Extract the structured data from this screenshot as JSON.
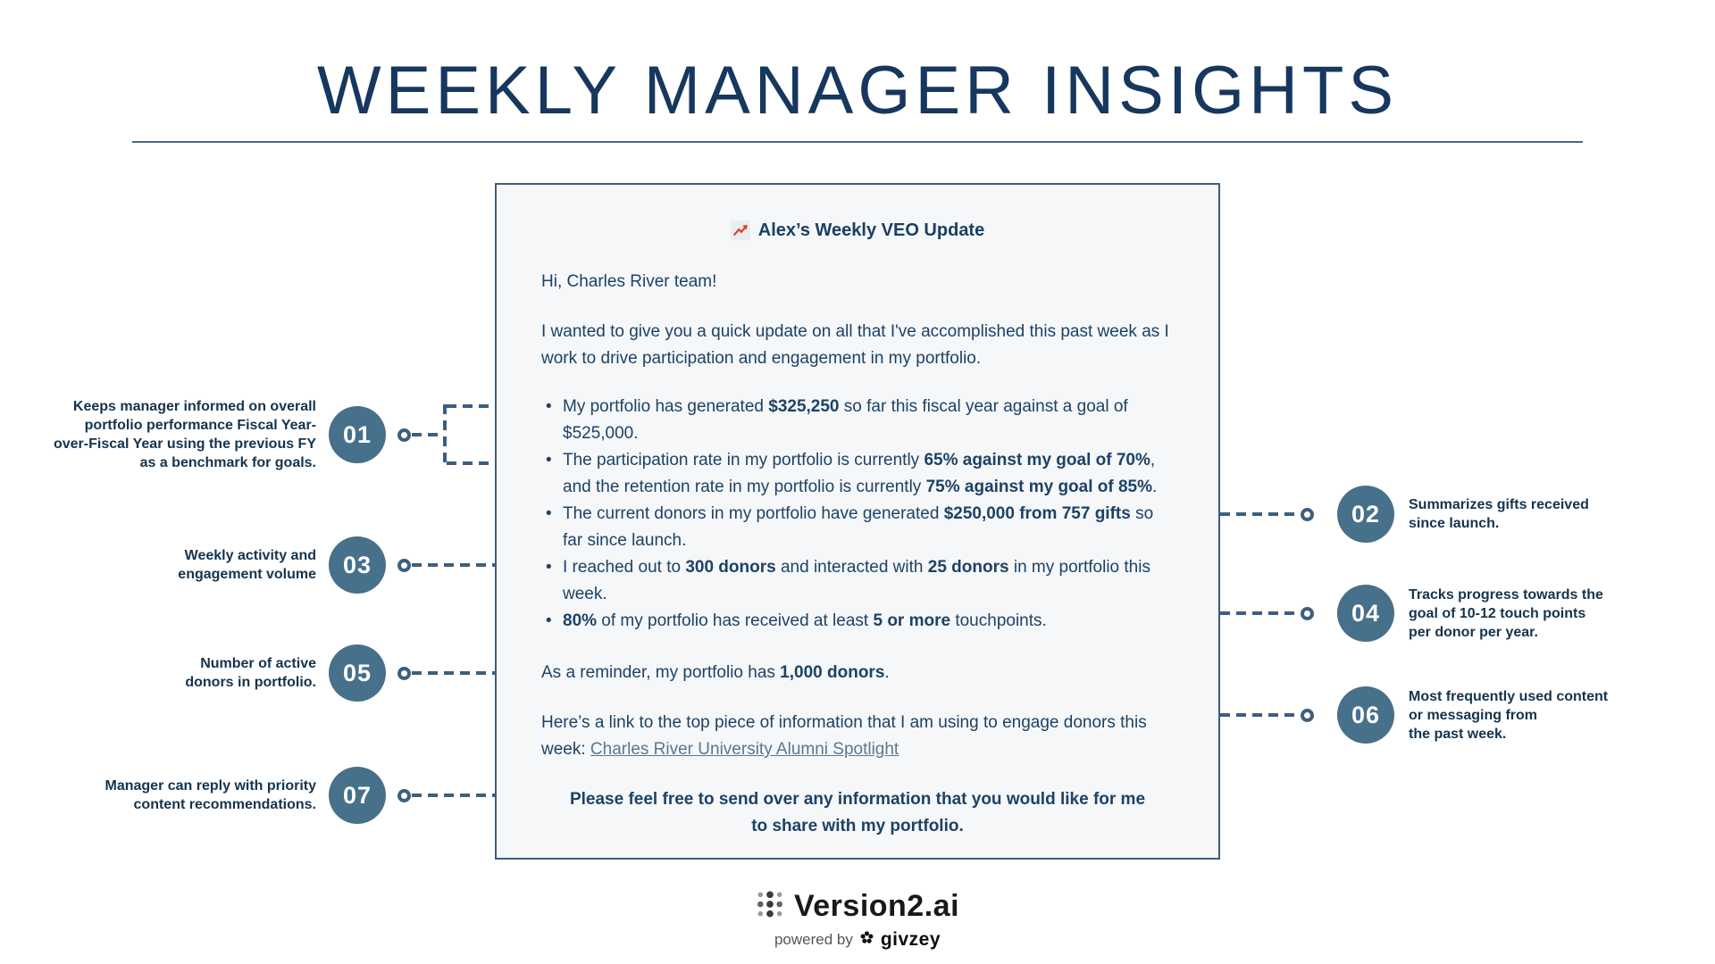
{
  "page": {
    "title": "WEEKLY MANAGER INSIGHTS"
  },
  "colors": {
    "title_navy": "#16375e",
    "body_navy": "#1d4266",
    "callout_circle_fill": "#47708a",
    "connector": "#3d5f7d",
    "card_bg": "#f5f7f8",
    "card_border": "#3c5d7c",
    "link": "#5a7890",
    "emoji_arrow_red": "#e0392b"
  },
  "card": {
    "title_icon": "chart-increasing-emoji",
    "title": "Alex’s Weekly VEO Update",
    "greeting": "Hi, Charles River team!",
    "intro": [
      {
        "t": "I wanted to give you a quick update on all that I've accomplished this past week as I work to drive participation and engagement in my portfolio."
      }
    ],
    "bullets": [
      [
        {
          "t": "My portfolio has generated "
        },
        {
          "t": "$325,250",
          "b": true
        },
        {
          "t": " so far this fiscal year against a goal of $525,000."
        }
      ],
      [
        {
          "t": "The participation rate in my portfolio is currently "
        },
        {
          "t": "65% against my goal of 70%",
          "b": true
        },
        {
          "t": ", and the retention rate in my portfolio is currently "
        },
        {
          "t": "75% against my goal of 85%",
          "b": true
        },
        {
          "t": "."
        }
      ],
      [
        {
          "t": "The current donors in my portfolio have generated "
        },
        {
          "t": "$250,000 from 757 gifts",
          "b": true
        },
        {
          "t": " so far since launch."
        }
      ],
      [
        {
          "t": "I reached out to "
        },
        {
          "t": "300 donors",
          "b": true
        },
        {
          "t": " and interacted with "
        },
        {
          "t": "25 donors",
          "b": true
        },
        {
          "t": " in my portfolio this week."
        }
      ],
      [
        {
          "t": "80%",
          "b": true
        },
        {
          "t": " of my portfolio has received at least "
        },
        {
          "t": "5 or more",
          "b": true
        },
        {
          "t": " touchpoints."
        }
      ]
    ],
    "reminder": [
      {
        "t": "As a reminder, my portfolio has "
      },
      {
        "t": "1,000 donors",
        "b": true
      },
      {
        "t": "."
      }
    ],
    "link_para": [
      {
        "t": "Here’s a link to the top piece of information that I am using to engage donors this week: "
      },
      {
        "t": "Charles River University Alumni Spotlight",
        "u": true
      }
    ],
    "closing": [
      {
        "t": "Please feel free to send over any information that you would like for me to share with my portfolio.",
        "b": true
      }
    ]
  },
  "callouts": [
    {
      "num": "01",
      "side": "left",
      "text": "Keeps manager informed on overall\nportfolio performance Fiscal Year-\nover-Fiscal Year using the previous FY\nas a benchmark for goals."
    },
    {
      "num": "02",
      "side": "right",
      "text": "Summarizes gifts received\nsince launch."
    },
    {
      "num": "03",
      "side": "left",
      "text": "Weekly activity and\nengagement volume"
    },
    {
      "num": "04",
      "side": "right",
      "text": "Tracks progress towards the\ngoal of 10-12 touch points\nper donor per year."
    },
    {
      "num": "05",
      "side": "left",
      "text": "Number of active\ndonors in portfolio."
    },
    {
      "num": "06",
      "side": "right",
      "text": "Most frequently used content\nor messaging from\nthe past week."
    },
    {
      "num": "07",
      "side": "left",
      "text": "Manager can reply with priority\ncontent recommendations."
    }
  ],
  "footer": {
    "brand": "Version2.ai",
    "powered_by": "powered by",
    "powered_brand": "givzey"
  }
}
